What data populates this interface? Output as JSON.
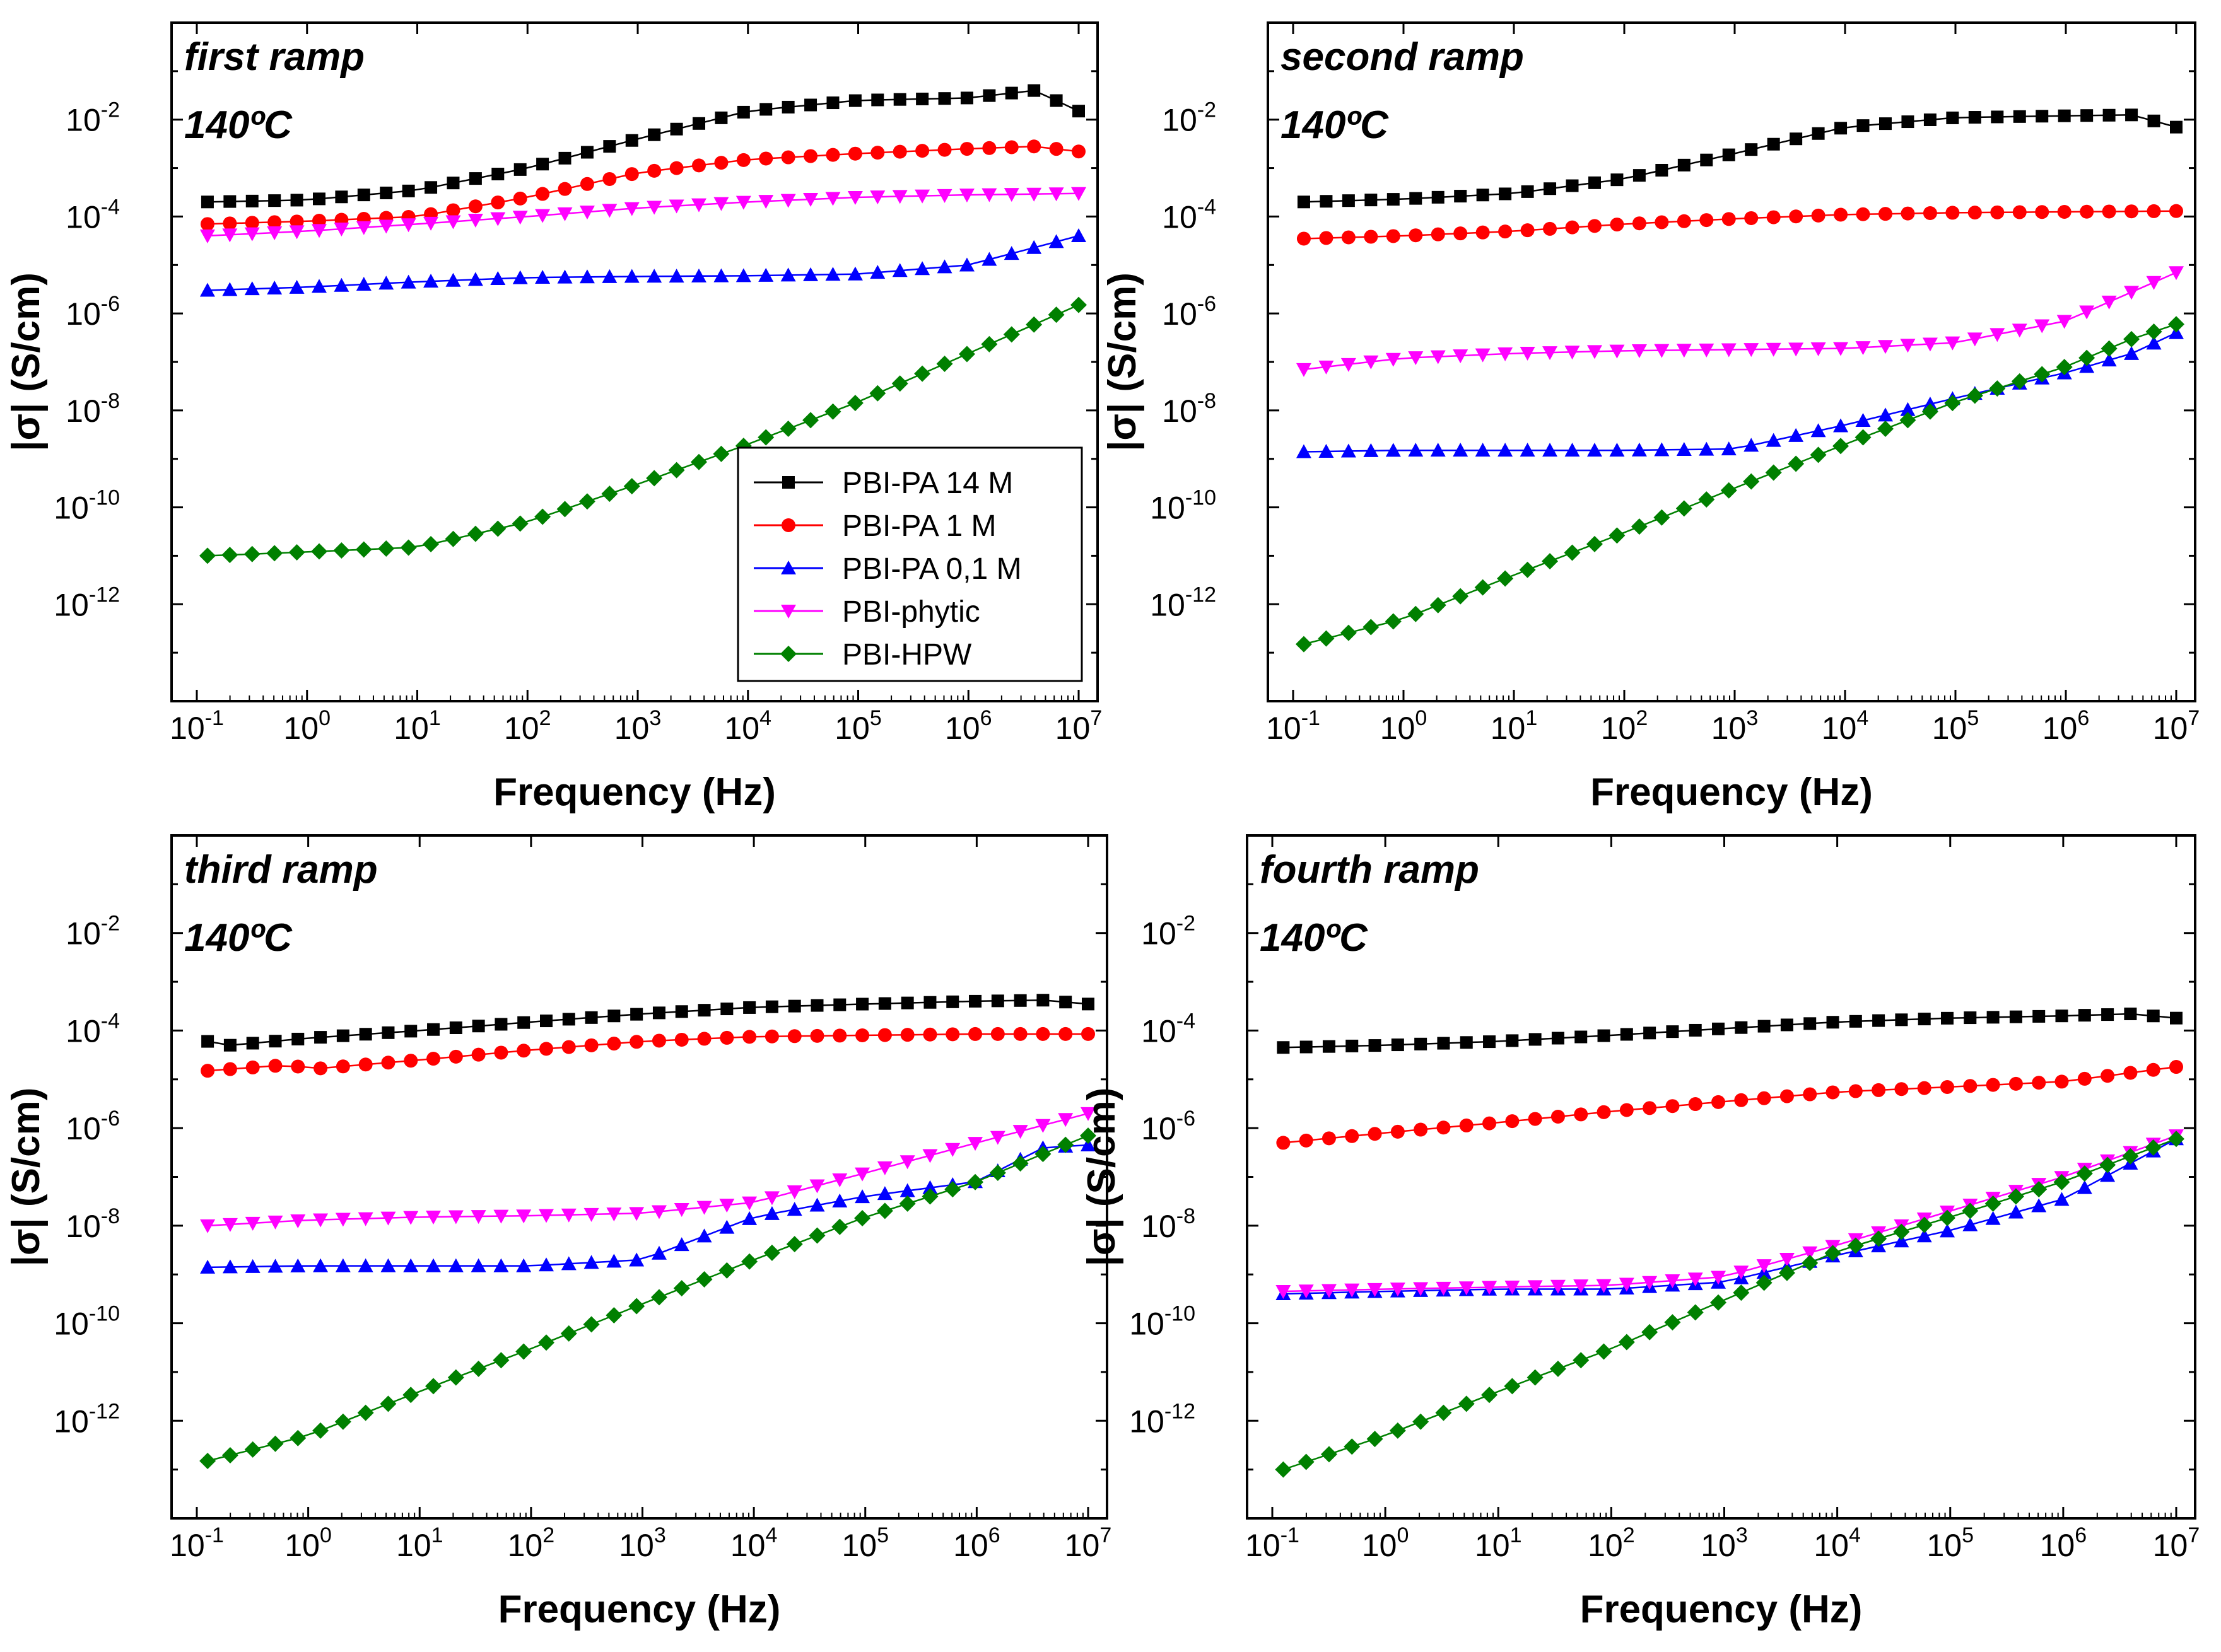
{
  "figure": {
    "legend": [
      {
        "label": "PBI-PA 14 M",
        "color": "#000000",
        "marker": "square"
      },
      {
        "label": "PBI-PA 1 M",
        "color": "#ff0000",
        "marker": "circle"
      },
      {
        "label": "PBI-PA 0,1 M",
        "color": "#0000ff",
        "marker": "triangle-up"
      },
      {
        "label": "PBI-phytic",
        "color": "#ff00ff",
        "marker": "triangle-down"
      },
      {
        "label": "PBI-HPW",
        "color": "#008000",
        "marker": "diamond"
      }
    ]
  },
  "chart_data": [
    {
      "type": "scatter",
      "xscale": "log",
      "yscale": "log",
      "xlabel": "Frequency (Hz)",
      "ylabel": "|σ| (S/cm)",
      "xlim": [
        0.1,
        10000000
      ],
      "ylim": [
        1e-14,
        1
      ],
      "annotations": [
        "first ramp",
        "140ºC"
      ],
      "legend": "center-right",
      "series": [
        {
          "name": "PBI-PA 14 M",
          "points": [
            [
              0.125,
              0.0002
            ],
            [
              1,
              0.00022
            ],
            [
              10,
              0.00035
            ],
            [
              100,
              0.001
            ],
            [
              1000,
              0.004
            ],
            [
              10000,
              0.015
            ],
            [
              100000,
              0.025
            ],
            [
              1000000,
              0.028
            ],
            [
              4000000,
              0.04
            ],
            [
              10000000,
              0.015
            ]
          ]
        },
        {
          "name": "PBI-PA 1 M",
          "points": [
            [
              0.125,
              7e-05
            ],
            [
              1,
              8e-05
            ],
            [
              10,
              0.0001
            ],
            [
              100,
              0.00025
            ],
            [
              1000,
              0.0008
            ],
            [
              10000,
              0.0015
            ],
            [
              100000,
              0.002
            ],
            [
              1000000,
              0.0025
            ],
            [
              4000000,
              0.0028
            ],
            [
              10000000,
              0.0022
            ]
          ]
        },
        {
          "name": "PBI-PA 0,1 M",
          "points": [
            [
              0.125,
              3e-06
            ],
            [
              1,
              3.5e-06
            ],
            [
              10,
              4.5e-06
            ],
            [
              100,
              5.5e-06
            ],
            [
              1000,
              5.8e-06
            ],
            [
              10000,
              6e-06
            ],
            [
              100000,
              6.5e-06
            ],
            [
              1000000,
              1e-05
            ],
            [
              10000000,
              4e-05
            ]
          ]
        },
        {
          "name": "PBI-phytic",
          "points": [
            [
              0.125,
              4e-05
            ],
            [
              1,
              5e-05
            ],
            [
              10,
              7e-05
            ],
            [
              100,
              0.0001
            ],
            [
              1000,
              0.00015
            ],
            [
              10000,
              0.0002
            ],
            [
              100000,
              0.00025
            ],
            [
              1000000,
              0.00028
            ],
            [
              10000000,
              0.0003
            ]
          ]
        },
        {
          "name": "PBI-HPW",
          "points": [
            [
              0.125,
              1e-11
            ],
            [
              1,
              1.2e-11
            ],
            [
              10,
              1.5e-11
            ],
            [
              100,
              5e-11
            ],
            [
              1000,
              3e-10
            ],
            [
              10000,
              2e-09
            ],
            [
              100000,
              1.5e-08
            ],
            [
              1000000,
              1.5e-07
            ],
            [
              10000000,
              1.5e-06
            ]
          ]
        }
      ]
    },
    {
      "type": "scatter",
      "xscale": "log",
      "yscale": "log",
      "xlabel": "Frequency (Hz)",
      "ylabel": "|σ| (S/cm)",
      "xlim": [
        0.1,
        10000000
      ],
      "ylim": [
        1e-14,
        1
      ],
      "annotations": [
        "second ramp",
        "140ºC"
      ],
      "series": [
        {
          "name": "PBI-PA 14 M",
          "points": [
            [
              0.125,
              0.0002
            ],
            [
              1,
              0.00023
            ],
            [
              10,
              0.0003
            ],
            [
              100,
              0.0006
            ],
            [
              1000,
              0.002
            ],
            [
              10000,
              0.007
            ],
            [
              100000,
              0.011
            ],
            [
              1000000,
              0.012
            ],
            [
              4000000,
              0.0125
            ],
            [
              10000000,
              0.007
            ]
          ]
        },
        {
          "name": "PBI-PA 1 M",
          "points": [
            [
              0.125,
              3.5e-05
            ],
            [
              1,
              4e-05
            ],
            [
              10,
              5e-05
            ],
            [
              100,
              7e-05
            ],
            [
              1000,
              9e-05
            ],
            [
              10000,
              0.00011
            ],
            [
              100000,
              0.00012
            ],
            [
              1000000,
              0.000125
            ],
            [
              10000000,
              0.00013
            ]
          ]
        },
        {
          "name": "PBI-PA 0,1 M",
          "points": [
            [
              0.125,
              1.4e-09
            ],
            [
              1,
              1.5e-09
            ],
            [
              10,
              1.5e-09
            ],
            [
              100,
              1.5e-09
            ],
            [
              1000,
              1.6e-09
            ],
            [
              10000,
              5e-09
            ],
            [
              100000,
              1.8e-08
            ],
            [
              1000000,
              6e-08
            ],
            [
              4000000,
              1.5e-07
            ],
            [
              10000000,
              4e-07
            ]
          ]
        },
        {
          "name": "PBI-phytic",
          "points": [
            [
              0.125,
              7e-08
            ],
            [
              1,
              1.2e-07
            ],
            [
              10,
              1.5e-07
            ],
            [
              100,
              1.7e-07
            ],
            [
              1000,
              1.8e-07
            ],
            [
              10000,
              1.9e-07
            ],
            [
              100000,
              2.5e-07
            ],
            [
              1000000,
              7e-07
            ],
            [
              10000000,
              7e-06
            ]
          ]
        },
        {
          "name": "PBI-HPW",
          "points": [
            [
              0.125,
              1.5e-13
            ],
            [
              1,
              5e-13
            ],
            [
              10,
              4e-12
            ],
            [
              100,
              3e-11
            ],
            [
              1000,
              2.5e-10
            ],
            [
              10000,
              2e-09
            ],
            [
              100000,
              1.5e-08
            ],
            [
              1000000,
              8e-08
            ],
            [
              4000000,
              3e-07
            ],
            [
              10000000,
              6e-07
            ]
          ]
        }
      ]
    },
    {
      "type": "scatter",
      "xscale": "log",
      "yscale": "log",
      "xlabel": "Frequency (Hz)",
      "ylabel": "|σ| (S/cm)",
      "xlim": [
        0.1,
        10000000
      ],
      "ylim": [
        1e-14,
        1
      ],
      "annotations": [
        "third ramp",
        "140ºC"
      ],
      "series": [
        {
          "name": "PBI-PA 14 M",
          "points": [
            [
              0.125,
              6e-05
            ],
            [
              0.2,
              5e-05
            ],
            [
              1,
              7e-05
            ],
            [
              10,
              0.0001
            ],
            [
              100,
              0.00015
            ],
            [
              1000,
              0.00022
            ],
            [
              10000,
              0.0003
            ],
            [
              100000,
              0.00035
            ],
            [
              1000000,
              0.0004
            ],
            [
              4000000,
              0.00042
            ],
            [
              10000000,
              0.00035
            ]
          ]
        },
        {
          "name": "PBI-PA 1 M",
          "points": [
            [
              0.125,
              1.5e-05
            ],
            [
              0.7,
              2e-05
            ],
            [
              1,
              1.6e-05
            ],
            [
              10,
              2.5e-05
            ],
            [
              100,
              4e-05
            ],
            [
              1000,
              6e-05
            ],
            [
              10000,
              7.5e-05
            ],
            [
              100000,
              8e-05
            ],
            [
              1000000,
              8.5e-05
            ],
            [
              10000000,
              8.5e-05
            ]
          ]
        },
        {
          "name": "PBI-PA 0,1 M",
          "points": [
            [
              0.125,
              1.4e-09
            ],
            [
              1,
              1.5e-09
            ],
            [
              10,
              1.5e-09
            ],
            [
              100,
              1.5e-09
            ],
            [
              1000,
              2e-09
            ],
            [
              10000,
              1.5e-08
            ],
            [
              100000,
              4e-08
            ],
            [
              1000000,
              8e-08
            ],
            [
              4000000,
              4e-07
            ],
            [
              10000000,
              4.5e-07
            ]
          ]
        },
        {
          "name": "PBI-phytic",
          "points": [
            [
              0.125,
              1e-08
            ],
            [
              1,
              1.3e-08
            ],
            [
              10,
              1.5e-08
            ],
            [
              100,
              1.6e-08
            ],
            [
              1000,
              1.8e-08
            ],
            [
              10000,
              3e-08
            ],
            [
              100000,
              1.2e-07
            ],
            [
              1000000,
              5e-07
            ],
            [
              10000000,
              2e-06
            ]
          ]
        },
        {
          "name": "PBI-HPW",
          "points": [
            [
              0.125,
              1.5e-13
            ],
            [
              1,
              5e-13
            ],
            [
              10,
              4e-12
            ],
            [
              100,
              3e-11
            ],
            [
              1000,
              2.5e-10
            ],
            [
              10000,
              2e-09
            ],
            [
              100000,
              1.5e-08
            ],
            [
              1000000,
              8e-08
            ],
            [
              4000000,
              3e-07
            ],
            [
              10000000,
              7e-07
            ]
          ]
        }
      ]
    },
    {
      "type": "scatter",
      "xscale": "log",
      "yscale": "log",
      "xlabel": "Frequency (Hz)",
      "ylabel": "|σ| (S/cm)",
      "xlim": [
        0.1,
        10000000
      ],
      "ylim": [
        1e-14,
        1
      ],
      "annotations": [
        "fourth ramp",
        "140ºC"
      ],
      "series": [
        {
          "name": "PBI-PA 14 M",
          "points": [
            [
              0.125,
              4.5e-05
            ],
            [
              1,
              5e-05
            ],
            [
              10,
              6e-05
            ],
            [
              100,
              8e-05
            ],
            [
              1000,
              0.00011
            ],
            [
              10000,
              0.00015
            ],
            [
              100000,
              0.00018
            ],
            [
              1000000,
              0.0002
            ],
            [
              4000000,
              0.00022
            ],
            [
              10000000,
              0.00018
            ]
          ]
        },
        {
          "name": "PBI-PA 1 M",
          "points": [
            [
              0.125,
              5e-07
            ],
            [
              1,
              8e-07
            ],
            [
              10,
              1.3e-06
            ],
            [
              100,
              2.2e-06
            ],
            [
              1000,
              3.5e-06
            ],
            [
              10000,
              5.5e-06
            ],
            [
              100000,
              7e-06
            ],
            [
              1000000,
              9e-06
            ],
            [
              10000000,
              1.8e-05
            ]
          ]
        },
        {
          "name": "PBI-PA 0,1 M",
          "points": [
            [
              0.125,
              4e-10
            ],
            [
              1,
              4.5e-10
            ],
            [
              10,
              5e-10
            ],
            [
              100,
              5e-10
            ],
            [
              1000,
              7e-10
            ],
            [
              10000,
              2.5e-09
            ],
            [
              100000,
              8e-09
            ],
            [
              1000000,
              3.5e-08
            ],
            [
              10000000,
              6e-07
            ]
          ]
        },
        {
          "name": "PBI-phytic",
          "points": [
            [
              0.125,
              4.5e-10
            ],
            [
              1,
              5e-10
            ],
            [
              10,
              5.5e-10
            ],
            [
              100,
              6e-10
            ],
            [
              1000,
              9e-10
            ],
            [
              10000,
              4e-09
            ],
            [
              100000,
              2e-08
            ],
            [
              1000000,
              1e-07
            ],
            [
              10000000,
              7e-07
            ]
          ]
        },
        {
          "name": "PBI-HPW",
          "points": [
            [
              0.125,
              1e-13
            ],
            [
              1,
              5e-13
            ],
            [
              10,
              4e-12
            ],
            [
              100,
              3e-11
            ],
            [
              1000,
              3e-10
            ],
            [
              10000,
              3e-09
            ],
            [
              100000,
              1.5e-08
            ],
            [
              1000000,
              8e-08
            ],
            [
              10000000,
              6e-07
            ]
          ]
        }
      ]
    }
  ]
}
